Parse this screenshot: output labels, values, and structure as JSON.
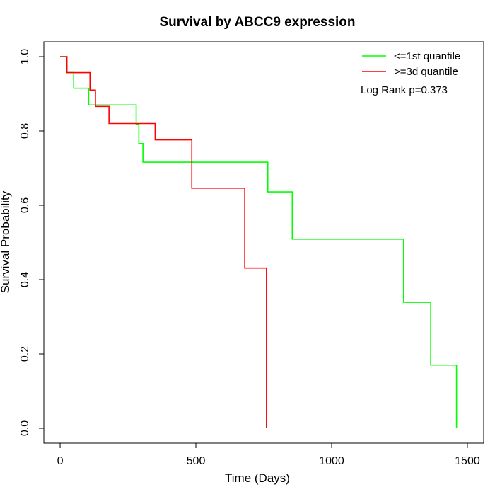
{
  "chart_data": {
    "type": "line",
    "title": "Survival by ABCC9 expression",
    "xlabel": "Time (Days)",
    "ylabel": "Survival Probability",
    "xlim": [
      -60,
      1560
    ],
    "ylim": [
      -0.04,
      1.04
    ],
    "x_ticks": [
      0,
      500,
      1000,
      1500
    ],
    "y_ticks": [
      0.0,
      0.2,
      0.4,
      0.6,
      0.8,
      1.0
    ],
    "x_tick_labels": [
      "0",
      "500",
      "1000",
      "1500"
    ],
    "y_tick_labels": [
      "0.0",
      "0.2",
      "0.4",
      "0.6",
      "0.8",
      "1.0"
    ],
    "grid": false,
    "legend_position": "top-right",
    "annotation": "Log Rank p=0.373",
    "series": [
      {
        "name": "<=1st quantile",
        "color": "#00ff00",
        "step": true,
        "points": [
          [
            0,
            1.0
          ],
          [
            25,
            0.957
          ],
          [
            50,
            0.915
          ],
          [
            105,
            0.87
          ],
          [
            250,
            0.87
          ],
          [
            280,
            0.818
          ],
          [
            290,
            0.766
          ],
          [
            305,
            0.716
          ],
          [
            765,
            0.716
          ],
          [
            765,
            0.636
          ],
          [
            855,
            0.636
          ],
          [
            855,
            0.509
          ],
          [
            1265,
            0.509
          ],
          [
            1265,
            0.339
          ],
          [
            1365,
            0.339
          ],
          [
            1365,
            0.17
          ],
          [
            1460,
            0.17
          ],
          [
            1460,
            0.0
          ]
        ]
      },
      {
        "name": ">=3d quantile",
        "color": "#ff0000",
        "step": true,
        "points": [
          [
            0,
            1.0
          ],
          [
            25,
            0.957
          ],
          [
            110,
            0.91
          ],
          [
            130,
            0.866
          ],
          [
            180,
            0.82
          ],
          [
            350,
            0.776
          ],
          [
            485,
            0.646
          ],
          [
            680,
            0.431
          ],
          [
            760,
            0.431
          ],
          [
            760,
            0.0
          ]
        ]
      }
    ]
  }
}
